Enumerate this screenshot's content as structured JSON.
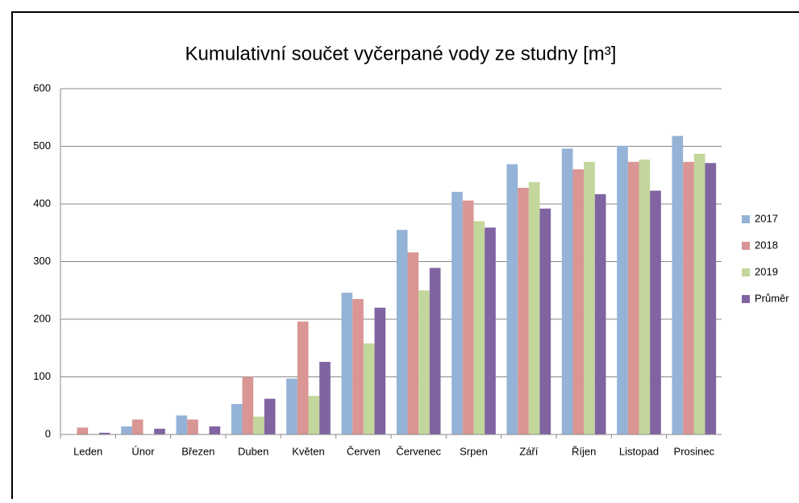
{
  "chart_data": {
    "type": "bar",
    "title": "Kumulativní součet vyčerpané vody ze studny [m³]",
    "categories": [
      "Leden",
      "Únor",
      "Březen",
      "Duben",
      "Květen",
      "Červen",
      "Červenec",
      "Srpen",
      "Září",
      "Říjen",
      "Listopad",
      "Prosinec"
    ],
    "series": [
      {
        "name": "2017",
        "color": "#95b3d7",
        "values": [
          0,
          14,
          33,
          53,
          97,
          246,
          355,
          421,
          469,
          496,
          501,
          518
        ]
      },
      {
        "name": "2018",
        "color": "#d99694",
        "values": [
          12,
          26,
          26,
          100,
          196,
          235,
          316,
          406,
          428,
          460,
          473,
          473
        ]
      },
      {
        "name": "2019",
        "color": "#c3d69b",
        "values": [
          0,
          0,
          0,
          31,
          67,
          158,
          250,
          370,
          438,
          473,
          477,
          487
        ]
      },
      {
        "name": "Průměr",
        "color": "#8064a2",
        "values": [
          3,
          10,
          14,
          62,
          126,
          220,
          289,
          359,
          392,
          417,
          423,
          471
        ]
      }
    ],
    "ylim": [
      0,
      600
    ],
    "yticks": [
      0,
      100,
      200,
      300,
      400,
      500,
      600
    ],
    "grid": true,
    "legend": "right"
  }
}
